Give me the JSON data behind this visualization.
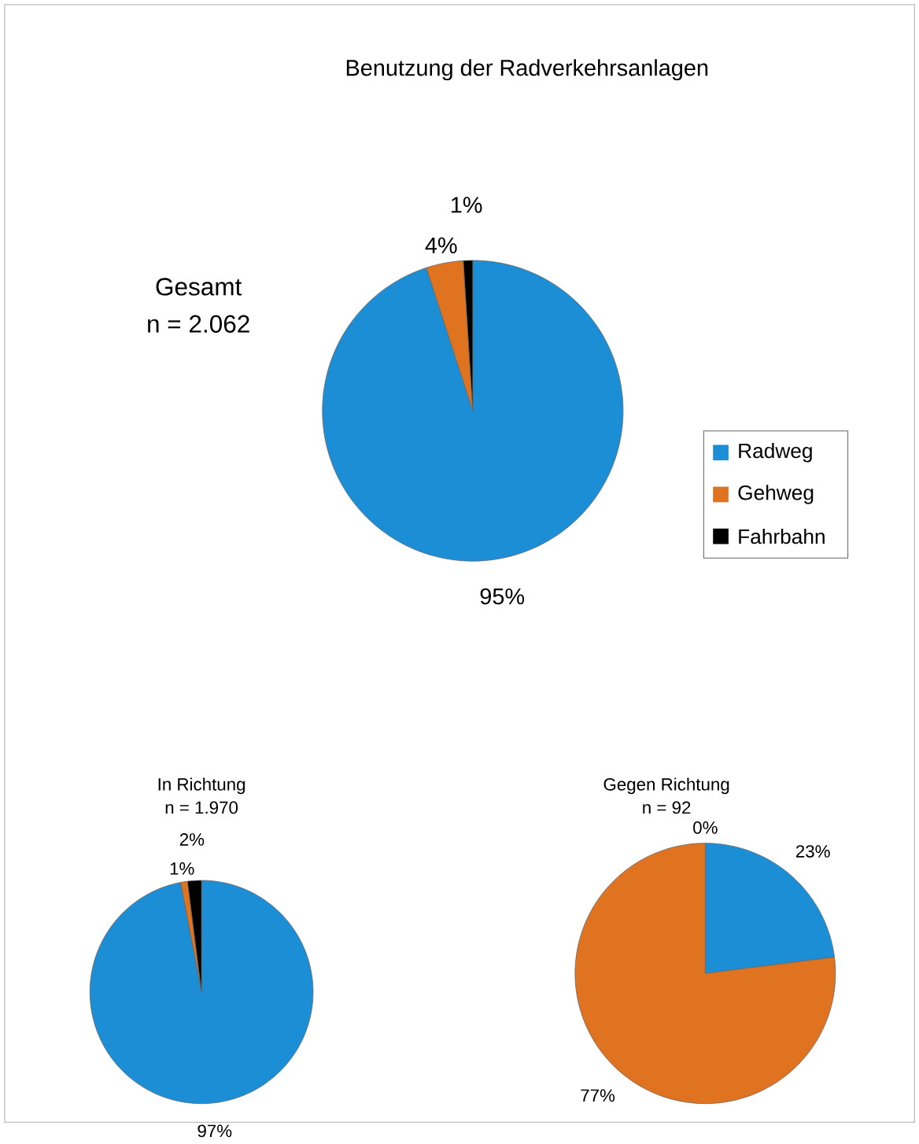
{
  "chart_data": [
    {
      "type": "pie",
      "title": "Benutzung der Radverkehrsanlagen",
      "annotations": [
        "Gesamt",
        "n = 2.062"
      ],
      "categories": [
        "Radweg",
        "Gehweg",
        "Fahrbahn"
      ],
      "values": [
        95,
        4,
        1
      ],
      "colors": [
        "#1b8ed6",
        "#e0731f",
        "#000000"
      ],
      "value_labels": [
        "95%",
        "4%",
        "1%"
      ],
      "legend": "right"
    },
    {
      "type": "pie",
      "title": "In Richtung",
      "subtitle": "n = 1.970",
      "categories": [
        null,
        null,
        null
      ],
      "values": [
        97,
        1,
        2
      ],
      "colors": [
        "#1b8ed6",
        "#e0731f",
        "#000000"
      ],
      "value_labels": [
        "97%",
        "1%",
        "2%"
      ]
    },
    {
      "type": "pie",
      "title": "Gegen Richtung",
      "subtitle": "n = 92",
      "categories": [
        null,
        null,
        null
      ],
      "values": [
        23,
        77,
        0
      ],
      "colors": [
        "#1b8ed6",
        "#e0731f",
        "#000000"
      ],
      "value_labels": [
        "23%",
        "77%",
        "0%"
      ]
    }
  ]
}
